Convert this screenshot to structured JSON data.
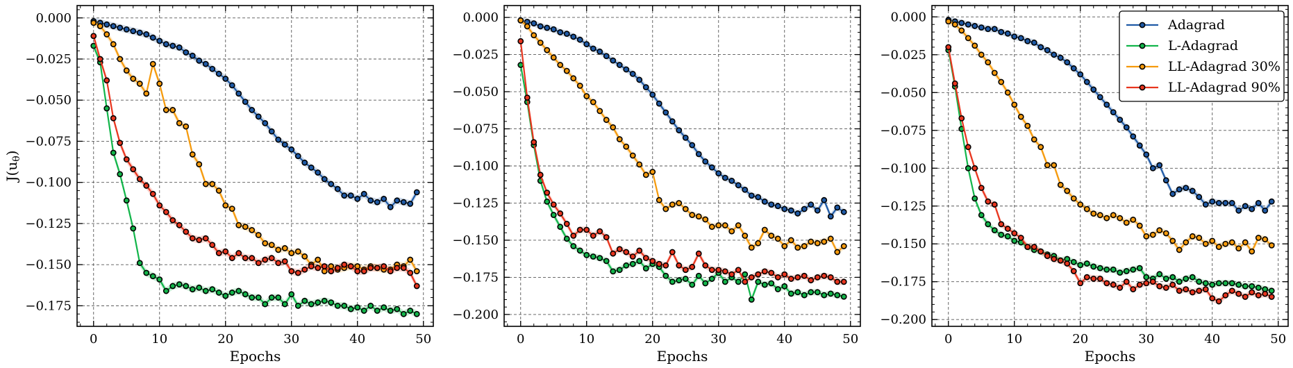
{
  "chart_data": [
    {
      "type": "line",
      "xlabel": "Epochs",
      "ylabel": "J(u_θ)",
      "xlim": [
        -2.5,
        51.5
      ],
      "ylim": [
        -0.1875,
        0.0075
      ],
      "xticks": [
        0,
        10,
        20,
        30,
        40,
        50
      ],
      "yticks": [
        0.0,
        -0.025,
        -0.05,
        -0.075,
        -0.1,
        -0.125,
        -0.15,
        -0.175
      ],
      "ytick_labels": [
        "0.000",
        "−0.025",
        "−0.050",
        "−0.075",
        "−0.100",
        "−0.125",
        "−0.150",
        "−0.175"
      ],
      "grid": true,
      "series": [
        {
          "name": "Adagrad",
          "color": "#1f5aa6",
          "values": [
            -0.002,
            -0.003,
            -0.004,
            -0.005,
            -0.006,
            -0.007,
            -0.008,
            -0.009,
            -0.01,
            -0.012,
            -0.014,
            -0.016,
            -0.017,
            -0.018,
            -0.021,
            -0.023,
            -0.026,
            -0.028,
            -0.031,
            -0.034,
            -0.037,
            -0.041,
            -0.046,
            -0.051,
            -0.056,
            -0.06,
            -0.064,
            -0.069,
            -0.074,
            -0.077,
            -0.08,
            -0.084,
            -0.088,
            -0.091,
            -0.094,
            -0.098,
            -0.101,
            -0.104,
            -0.108,
            -0.108,
            -0.11,
            -0.107,
            -0.111,
            -0.112,
            -0.11,
            -0.115,
            -0.111,
            -0.112,
            -0.113,
            -0.106
          ]
        },
        {
          "name": "L-Adagrad",
          "color": "#12b54a",
          "values": [
            -0.017,
            -0.027,
            -0.055,
            -0.082,
            -0.095,
            -0.111,
            -0.128,
            -0.149,
            -0.155,
            -0.157,
            -0.159,
            -0.166,
            -0.163,
            -0.162,
            -0.163,
            -0.165,
            -0.164,
            -0.166,
            -0.165,
            -0.167,
            -0.169,
            -0.167,
            -0.166,
            -0.168,
            -0.17,
            -0.17,
            -0.174,
            -0.17,
            -0.17,
            -0.174,
            -0.168,
            -0.175,
            -0.172,
            -0.174,
            -0.173,
            -0.172,
            -0.173,
            -0.175,
            -0.175,
            -0.177,
            -0.176,
            -0.178,
            -0.175,
            -0.178,
            -0.176,
            -0.178,
            -0.177,
            -0.18,
            -0.178,
            -0.18
          ]
        },
        {
          "name": "LL-Adagrad 30%",
          "color": "#f59a0c",
          "values": [
            -0.003,
            -0.005,
            -0.01,
            -0.016,
            -0.025,
            -0.032,
            -0.037,
            -0.04,
            -0.046,
            -0.028,
            -0.04,
            -0.056,
            -0.056,
            -0.064,
            -0.066,
            -0.083,
            -0.089,
            -0.101,
            -0.101,
            -0.105,
            -0.114,
            -0.116,
            -0.126,
            -0.127,
            -0.129,
            -0.132,
            -0.137,
            -0.138,
            -0.141,
            -0.14,
            -0.143,
            -0.142,
            -0.145,
            -0.15,
            -0.147,
            -0.154,
            -0.151,
            -0.153,
            -0.152,
            -0.151,
            -0.151,
            -0.153,
            -0.151,
            -0.152,
            -0.153,
            -0.153,
            -0.15,
            -0.151,
            -0.147,
            -0.154
          ]
        },
        {
          "name": "LL-Adagrad 90%",
          "color": "#e8351e",
          "values": [
            -0.011,
            -0.025,
            -0.038,
            -0.061,
            -0.076,
            -0.086,
            -0.092,
            -0.098,
            -0.102,
            -0.107,
            -0.114,
            -0.118,
            -0.123,
            -0.126,
            -0.13,
            -0.134,
            -0.135,
            -0.134,
            -0.138,
            -0.143,
            -0.142,
            -0.146,
            -0.143,
            -0.146,
            -0.146,
            -0.149,
            -0.147,
            -0.146,
            -0.149,
            -0.148,
            -0.154,
            -0.155,
            -0.153,
            -0.151,
            -0.152,
            -0.151,
            -0.154,
            -0.152,
            -0.15,
            -0.151,
            -0.154,
            -0.154,
            -0.152,
            -0.152,
            -0.151,
            -0.154,
            -0.152,
            -0.152,
            -0.155,
            -0.163
          ]
        }
      ]
    },
    {
      "type": "line",
      "xlabel": "Epochs",
      "ylabel": "",
      "xlim": [
        -2.5,
        51.5
      ],
      "ylim": [
        -0.208,
        0.008
      ],
      "xticks": [
        0,
        10,
        20,
        30,
        40,
        50
      ],
      "yticks": [
        0.0,
        -0.025,
        -0.05,
        -0.075,
        -0.1,
        -0.125,
        -0.15,
        -0.175,
        -0.2
      ],
      "ytick_labels": [
        "0.000",
        "−0.025",
        "−0.050",
        "−0.075",
        "−0.100",
        "−0.125",
        "−0.150",
        "−0.175",
        "−0.200"
      ],
      "grid": true,
      "series": [
        {
          "name": "Adagrad",
          "color": "#1f5aa6",
          "values": [
            -0.002,
            -0.003,
            -0.004,
            -0.006,
            -0.007,
            -0.008,
            -0.01,
            -0.011,
            -0.013,
            -0.015,
            -0.018,
            -0.021,
            -0.023,
            -0.026,
            -0.029,
            -0.032,
            -0.035,
            -0.038,
            -0.042,
            -0.047,
            -0.052,
            -0.058,
            -0.064,
            -0.07,
            -0.076,
            -0.081,
            -0.086,
            -0.092,
            -0.097,
            -0.101,
            -0.105,
            -0.108,
            -0.11,
            -0.113,
            -0.116,
            -0.12,
            -0.121,
            -0.124,
            -0.126,
            -0.127,
            -0.129,
            -0.13,
            -0.132,
            -0.129,
            -0.126,
            -0.13,
            -0.123,
            -0.134,
            -0.128,
            -0.131
          ]
        },
        {
          "name": "L-Adagrad",
          "color": "#12b54a",
          "values": [
            -0.032,
            -0.057,
            -0.086,
            -0.11,
            -0.124,
            -0.133,
            -0.141,
            -0.149,
            -0.154,
            -0.157,
            -0.16,
            -0.161,
            -0.162,
            -0.164,
            -0.171,
            -0.17,
            -0.167,
            -0.166,
            -0.164,
            -0.169,
            -0.166,
            -0.168,
            -0.174,
            -0.178,
            -0.177,
            -0.176,
            -0.18,
            -0.174,
            -0.179,
            -0.176,
            -0.172,
            -0.178,
            -0.175,
            -0.178,
            -0.173,
            -0.19,
            -0.178,
            -0.18,
            -0.179,
            -0.183,
            -0.181,
            -0.186,
            -0.185,
            -0.187,
            -0.185,
            -0.185,
            -0.187,
            -0.186,
            -0.187,
            -0.188
          ]
        },
        {
          "name": "LL-Adagrad 30%",
          "color": "#f59a0c",
          "values": [
            -0.002,
            -0.006,
            -0.012,
            -0.017,
            -0.022,
            -0.027,
            -0.032,
            -0.036,
            -0.041,
            -0.046,
            -0.053,
            -0.057,
            -0.063,
            -0.069,
            -0.074,
            -0.082,
            -0.087,
            -0.093,
            -0.099,
            -0.106,
            -0.104,
            -0.123,
            -0.129,
            -0.126,
            -0.125,
            -0.129,
            -0.133,
            -0.134,
            -0.136,
            -0.141,
            -0.14,
            -0.14,
            -0.144,
            -0.14,
            -0.147,
            -0.155,
            -0.152,
            -0.143,
            -0.147,
            -0.149,
            -0.154,
            -0.15,
            -0.155,
            -0.154,
            -0.151,
            -0.152,
            -0.151,
            -0.149,
            -0.158,
            -0.154
          ]
        },
        {
          "name": "LL-Adagrad 90%",
          "color": "#e8351e",
          "values": [
            -0.016,
            -0.054,
            -0.084,
            -0.106,
            -0.118,
            -0.126,
            -0.132,
            -0.139,
            -0.147,
            -0.143,
            -0.143,
            -0.147,
            -0.144,
            -0.148,
            -0.159,
            -0.156,
            -0.158,
            -0.161,
            -0.157,
            -0.162,
            -0.164,
            -0.166,
            -0.167,
            -0.158,
            -0.167,
            -0.17,
            -0.168,
            -0.159,
            -0.167,
            -0.17,
            -0.17,
            -0.171,
            -0.173,
            -0.17,
            -0.178,
            -0.175,
            -0.173,
            -0.171,
            -0.172,
            -0.175,
            -0.173,
            -0.176,
            -0.175,
            -0.174,
            -0.177,
            -0.175,
            -0.174,
            -0.175,
            -0.178,
            -0.178
          ]
        }
      ]
    },
    {
      "type": "line",
      "xlabel": "Epochs",
      "ylabel": "",
      "xlim": [
        -2.5,
        51.5
      ],
      "ylim": [
        -0.2045,
        0.0075
      ],
      "xticks": [
        0,
        10,
        20,
        30,
        40,
        50
      ],
      "yticks": [
        0.0,
        -0.025,
        -0.05,
        -0.075,
        -0.1,
        -0.125,
        -0.15,
        -0.175,
        -0.2
      ],
      "ytick_labels": [
        "0.000",
        "−0.025",
        "−0.050",
        "−0.075",
        "−0.100",
        "−0.125",
        "−0.150",
        "−0.175",
        "−0.200"
      ],
      "grid": true,
      "legend": {
        "placement": "top-right",
        "entries": [
          "Adagrad",
          "L-Adagrad",
          "LL-Adagrad 30%",
          "LL-Adagrad 90%"
        ]
      },
      "series": [
        {
          "name": "Adagrad",
          "color": "#1f5aa6",
          "values": [
            -0.002,
            -0.003,
            -0.004,
            -0.005,
            -0.006,
            -0.007,
            -0.008,
            -0.008,
            -0.01,
            -0.011,
            -0.013,
            -0.014,
            -0.016,
            -0.017,
            -0.02,
            -0.022,
            -0.025,
            -0.027,
            -0.03,
            -0.034,
            -0.038,
            -0.043,
            -0.048,
            -0.053,
            -0.058,
            -0.063,
            -0.068,
            -0.073,
            -0.079,
            -0.085,
            -0.091,
            -0.1,
            -0.098,
            -0.108,
            -0.117,
            -0.114,
            -0.113,
            -0.115,
            -0.119,
            -0.124,
            -0.122,
            -0.123,
            -0.123,
            -0.123,
            -0.128,
            -0.125,
            -0.127,
            -0.123,
            -0.128,
            -0.122
          ]
        },
        {
          "name": "L-Adagrad",
          "color": "#12b54a",
          "values": [
            -0.022,
            -0.046,
            -0.074,
            -0.1,
            -0.12,
            -0.131,
            -0.137,
            -0.141,
            -0.144,
            -0.145,
            -0.148,
            -0.149,
            -0.152,
            -0.154,
            -0.155,
            -0.157,
            -0.158,
            -0.161,
            -0.16,
            -0.162,
            -0.164,
            -0.163,
            -0.165,
            -0.166,
            -0.167,
            -0.167,
            -0.169,
            -0.168,
            -0.167,
            -0.166,
            -0.172,
            -0.173,
            -0.17,
            -0.173,
            -0.172,
            -0.175,
            -0.173,
            -0.172,
            -0.175,
            -0.176,
            -0.177,
            -0.176,
            -0.176,
            -0.176,
            -0.177,
            -0.178,
            -0.178,
            -0.179,
            -0.18,
            -0.181
          ]
        },
        {
          "name": "LL-Adagrad 30%",
          "color": "#f59a0c",
          "values": [
            -0.003,
            -0.005,
            -0.009,
            -0.014,
            -0.019,
            -0.025,
            -0.03,
            -0.037,
            -0.043,
            -0.05,
            -0.058,
            -0.066,
            -0.072,
            -0.081,
            -0.086,
            -0.098,
            -0.098,
            -0.111,
            -0.115,
            -0.12,
            -0.124,
            -0.127,
            -0.13,
            -0.131,
            -0.133,
            -0.131,
            -0.133,
            -0.136,
            -0.134,
            -0.138,
            -0.145,
            -0.144,
            -0.141,
            -0.143,
            -0.148,
            -0.154,
            -0.149,
            -0.145,
            -0.146,
            -0.15,
            -0.148,
            -0.152,
            -0.15,
            -0.149,
            -0.153,
            -0.149,
            -0.155,
            -0.146,
            -0.147,
            -0.151
          ]
        },
        {
          "name": "LL-Adagrad 90%",
          "color": "#e8351e",
          "values": [
            -0.02,
            -0.044,
            -0.067,
            -0.086,
            -0.1,
            -0.113,
            -0.122,
            -0.124,
            -0.137,
            -0.14,
            -0.143,
            -0.146,
            -0.152,
            -0.152,
            -0.155,
            -0.158,
            -0.16,
            -0.161,
            -0.163,
            -0.168,
            -0.176,
            -0.172,
            -0.173,
            -0.173,
            -0.176,
            -0.177,
            -0.179,
            -0.175,
            -0.18,
            -0.177,
            -0.176,
            -0.175,
            -0.178,
            -0.179,
            -0.177,
            -0.181,
            -0.18,
            -0.182,
            -0.181,
            -0.18,
            -0.186,
            -0.188,
            -0.184,
            -0.181,
            -0.183,
            -0.185,
            -0.182,
            -0.184,
            -0.183,
            -0.185
          ]
        }
      ]
    }
  ]
}
